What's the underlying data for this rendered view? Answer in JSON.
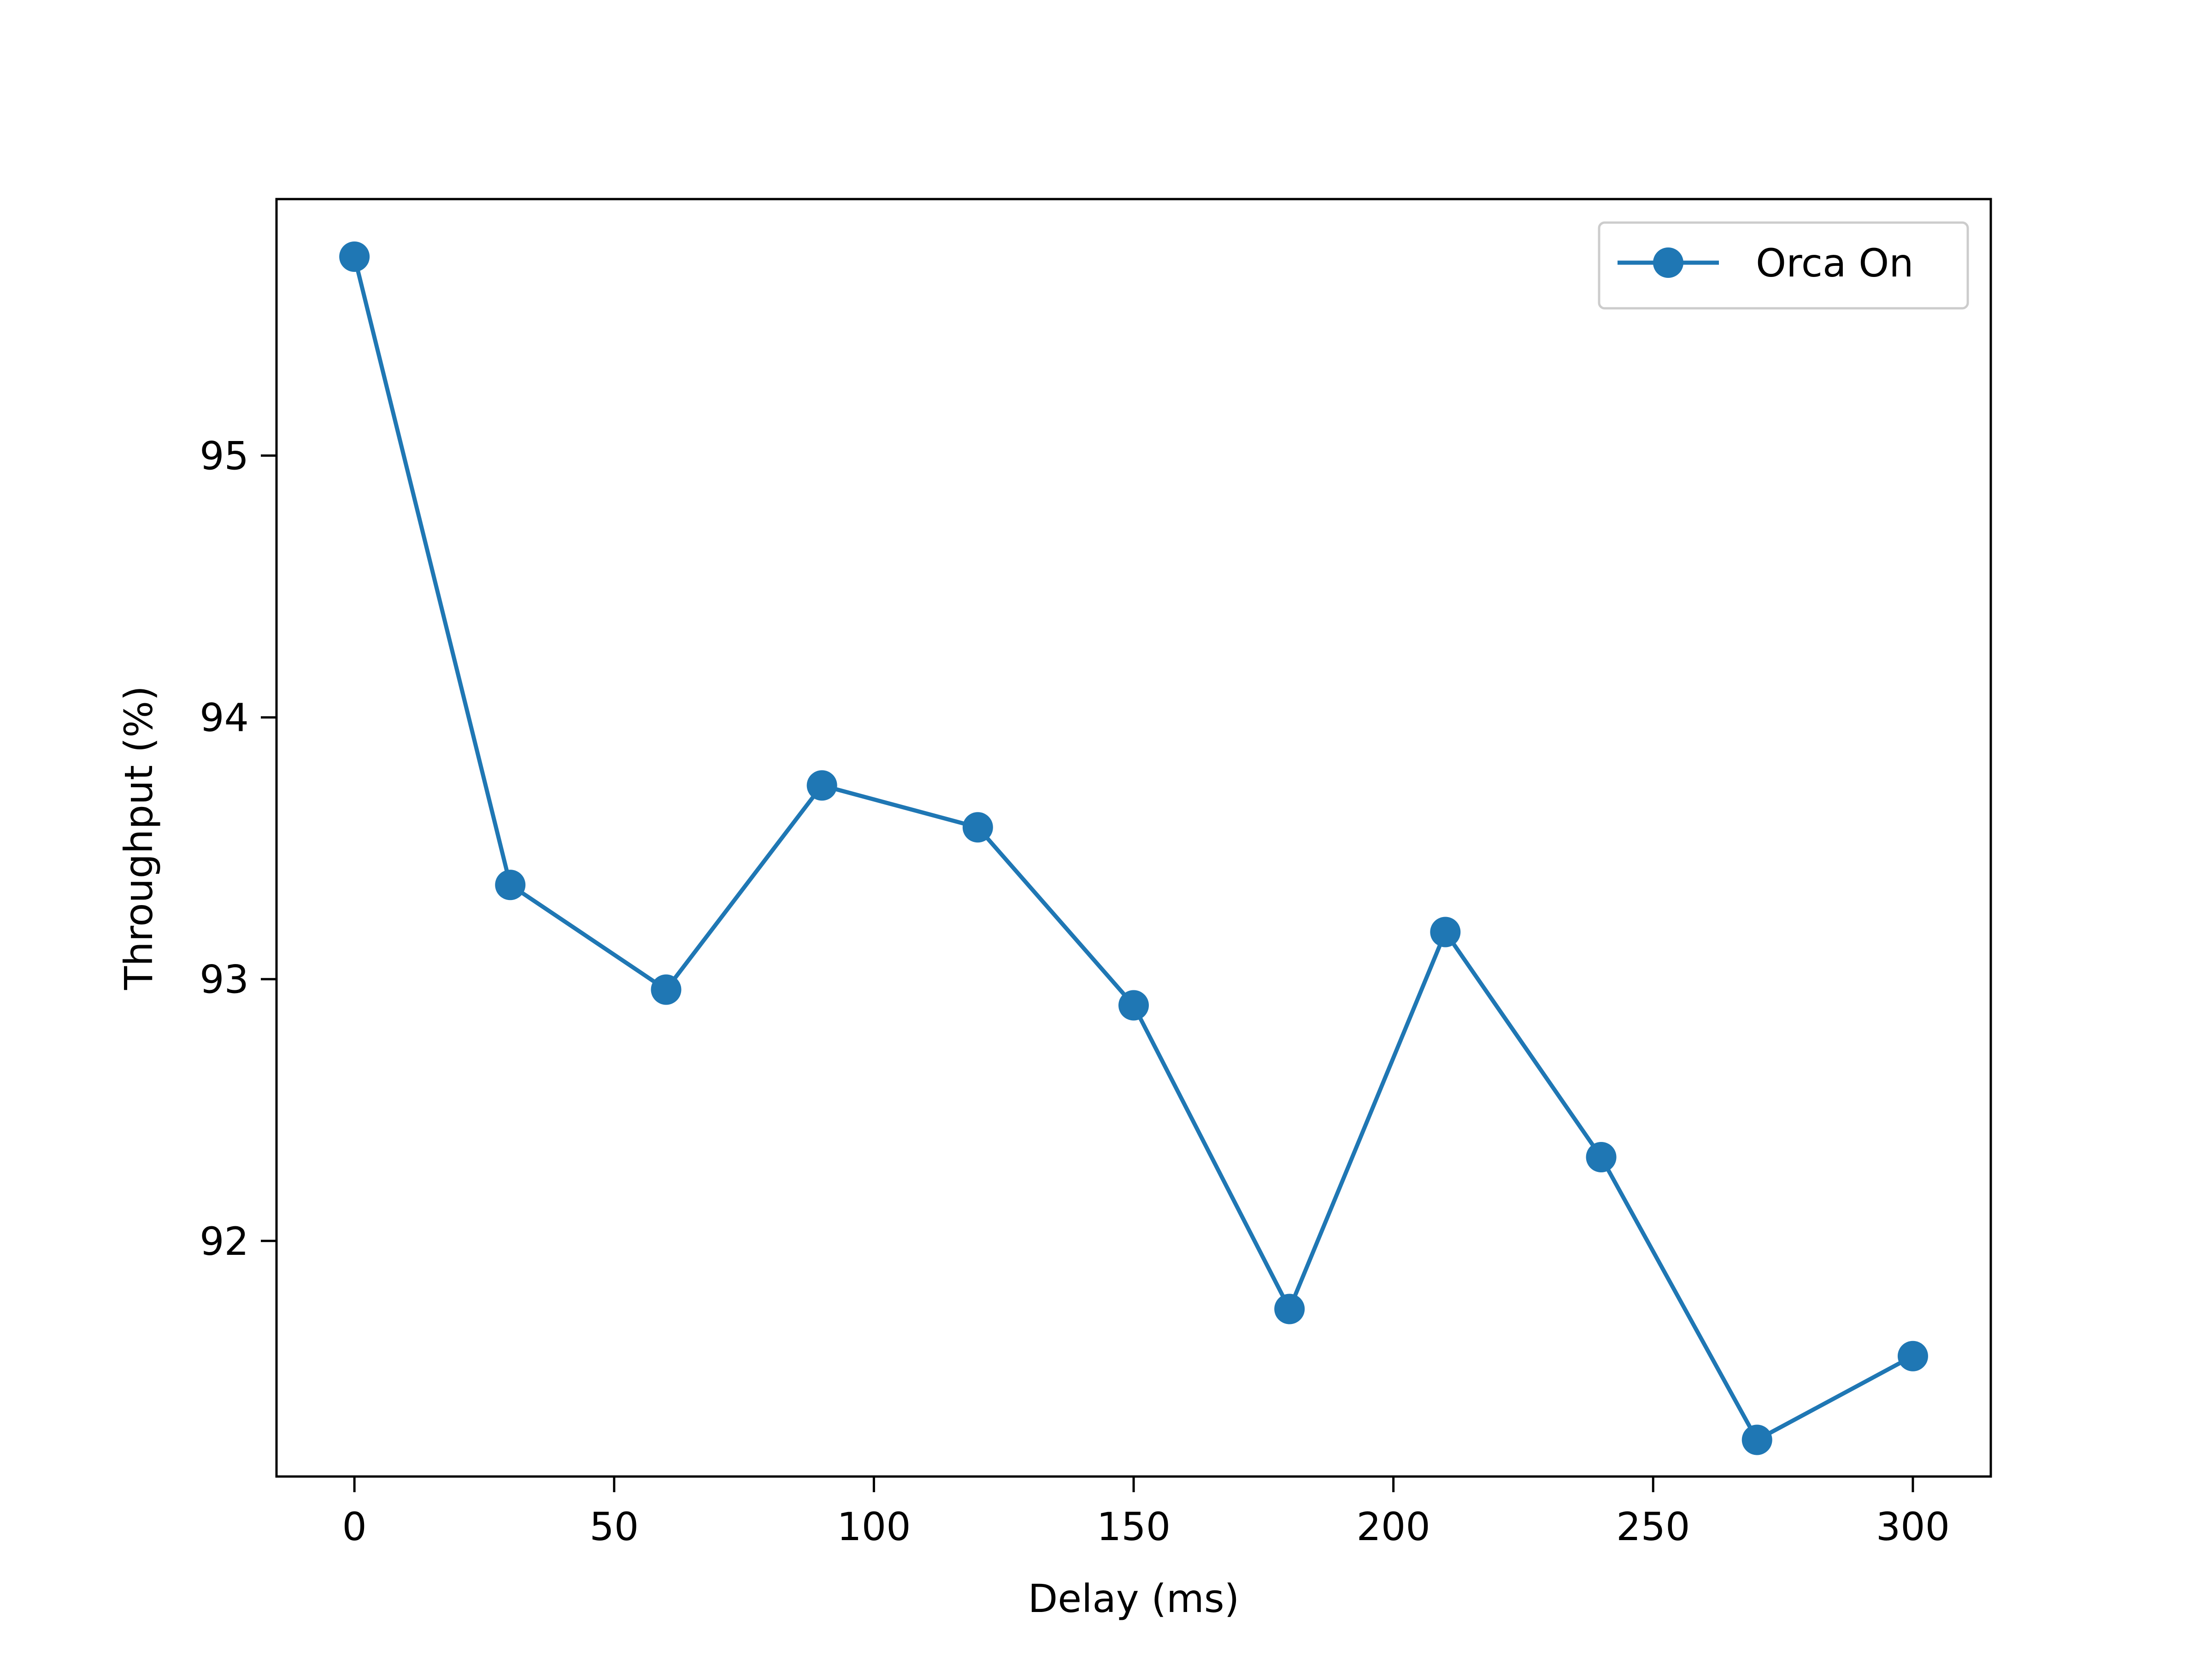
{
  "chart_data": {
    "type": "line",
    "xlabel": "Delay (ms)",
    "ylabel": "Throughput (%)",
    "xlim": [
      -15,
      315
    ],
    "ylim": [
      91.1,
      95.98
    ],
    "xticks": [
      0,
      50,
      100,
      150,
      200,
      250,
      300
    ],
    "yticks": [
      92,
      93,
      94,
      95
    ],
    "grid": false,
    "legend_position": "top-right",
    "series": [
      {
        "name": "Orca On",
        "color": "#1f77b4",
        "marker": "circle",
        "x": [
          0,
          30,
          60,
          90,
          120,
          150,
          180,
          210,
          240,
          270,
          300
        ],
        "y": [
          95.76,
          93.36,
          92.96,
          93.74,
          93.58,
          92.9,
          91.74,
          93.18,
          92.32,
          91.24,
          91.56
        ]
      }
    ]
  }
}
